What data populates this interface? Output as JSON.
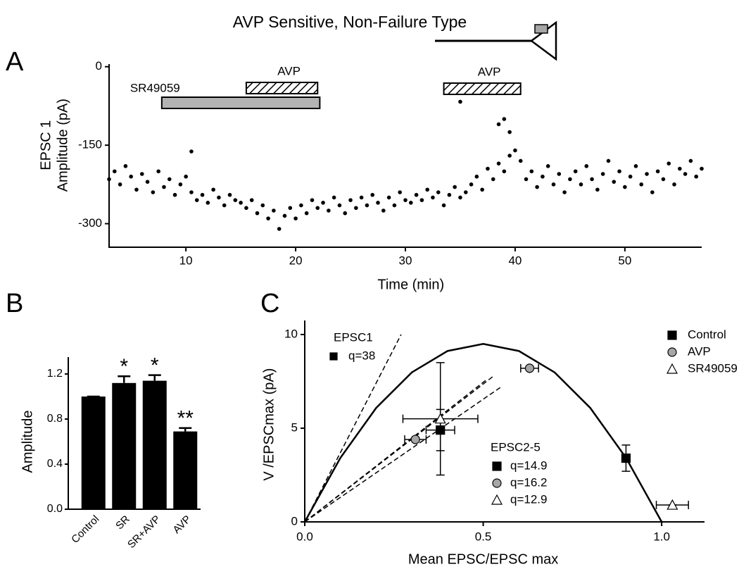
{
  "chart_data": [
    {
      "type": "scatter",
      "panel_label": "A",
      "title": "AVP Sensitive, Non-Failure Type",
      "ylabel_lines": [
        "EPSC 1",
        "Amplitude (pA)"
      ],
      "xlabel": "Time (min)",
      "xlim": [
        3,
        57
      ],
      "ylim": [
        -345,
        5
      ],
      "xticks": [
        10,
        20,
        30,
        40,
        50
      ],
      "yticks": [
        -300,
        -150,
        0
      ],
      "color": "#000000",
      "x": [
        3,
        3.5,
        4,
        4.5,
        5,
        5.5,
        6,
        6.5,
        7,
        7.5,
        8,
        8.5,
        9,
        9.5,
        10,
        10.5,
        11,
        11.5,
        12,
        12.5,
        13,
        13.5,
        14,
        14.5,
        15,
        15.5,
        16,
        16.5,
        17,
        17.5,
        18,
        18.5,
        19,
        19.5,
        20,
        20.5,
        21,
        21.5,
        22,
        22.5,
        23,
        23.5,
        24,
        24.5,
        25,
        25.5,
        26,
        26.5,
        27,
        27.5,
        28,
        28.5,
        29,
        29.5,
        30,
        30.5,
        31,
        31.5,
        32,
        32.5,
        33,
        33.5,
        34,
        34.5,
        35,
        35.5,
        36,
        36.5,
        37,
        37.5,
        38,
        38.5,
        39,
        39.5,
        40,
        40.5,
        41,
        41.5,
        42,
        42.5,
        43,
        43.5,
        44,
        44.5,
        45,
        45.5,
        46,
        46.5,
        47,
        47.5,
        48,
        48.5,
        49,
        49.5,
        50,
        50.5,
        51,
        51.5,
        52,
        52.5,
        53,
        53.5,
        54,
        54.5,
        55,
        55.5,
        56,
        56.5,
        57,
        10.5,
        35,
        39,
        38.5,
        39.5
      ],
      "values": [
        -215,
        -200,
        -225,
        -190,
        -210,
        -235,
        -205,
        -220,
        -240,
        -200,
        -230,
        -215,
        -245,
        -225,
        -210,
        -240,
        -255,
        -245,
        -260,
        -235,
        -250,
        -265,
        -245,
        -255,
        -260,
        -270,
        -255,
        -280,
        -265,
        -290,
        -275,
        -310,
        -285,
        -270,
        -290,
        -265,
        -280,
        -255,
        -270,
        -260,
        -275,
        -250,
        -265,
        -280,
        -255,
        -270,
        -250,
        -265,
        -245,
        -260,
        -275,
        -250,
        -265,
        -240,
        -255,
        -260,
        -245,
        -255,
        -235,
        -250,
        -240,
        -265,
        -245,
        -230,
        -250,
        -240,
        -225,
        -210,
        -235,
        -195,
        -215,
        -185,
        -200,
        -170,
        -160,
        -180,
        -215,
        -200,
        -230,
        -210,
        -190,
        -225,
        -205,
        -240,
        -215,
        -200,
        -225,
        -190,
        -215,
        -235,
        -205,
        -180,
        -220,
        -200,
        -230,
        -210,
        -190,
        -225,
        -205,
        -240,
        -200,
        -215,
        -185,
        -225,
        -195,
        -205,
        -180,
        -210,
        -195,
        -162,
        -67,
        -100,
        -110,
        -125
      ],
      "bars": [
        {
          "label": "SR49059",
          "start": 7.8,
          "end": 22.2,
          "style": "solid",
          "color": "#b3b3b3"
        },
        {
          "label": "AVP",
          "start": 15.5,
          "end": 22.0,
          "style": "hatched",
          "color": "#000000"
        },
        {
          "label": "AVP",
          "start": 33.5,
          "end": 40.5,
          "style": "hatched",
          "color": "#000000"
        }
      ]
    },
    {
      "type": "bar",
      "panel_label": "B",
      "ylabel": "Amplitude",
      "categories": [
        "Control",
        "SR",
        "SR+AVP",
        "AVP"
      ],
      "values": [
        1.0,
        1.12,
        1.14,
        0.69
      ],
      "errors": [
        0,
        0.06,
        0.05,
        0.03
      ],
      "significance": [
        null,
        "*",
        "*",
        "**"
      ],
      "ylim": [
        0,
        1.35
      ],
      "yticks": [
        {
          "value": 0,
          "label": "0.0"
        },
        0.4,
        0.8,
        1.2
      ],
      "color": "#000000"
    },
    {
      "type": "scatter-errorbar",
      "panel_label": "C",
      "xlabel": "Mean EPSC/EPSC max",
      "ylabel": "V /EPSCmax (pA)",
      "xlim": [
        0,
        1.12
      ],
      "ylim": [
        0,
        10.75
      ],
      "xticks": [
        {
          "value": 0,
          "label": "0.0"
        },
        0.5,
        {
          "value": 1,
          "label": "1.0"
        }
      ],
      "yticks": [
        0,
        5,
        10
      ],
      "series": [
        {
          "name": "Control",
          "marker": "square",
          "color": "#000000",
          "x": [
            0.38,
            0.9
          ],
          "values": [
            4.9,
            3.4
          ],
          "xerr": [
            0.04,
            0
          ],
          "yerr": [
            1.1,
            0.7
          ]
        },
        {
          "name": "AVP",
          "marker": "circle",
          "color": "#a6a6a6",
          "x": [
            0.31,
            0.63
          ],
          "values": [
            4.4,
            8.2
          ],
          "xerr": [
            0.03,
            0.025
          ],
          "yerr": [
            0,
            0
          ]
        },
        {
          "name": "SR49059",
          "marker": "triangle",
          "color": "#ffffff",
          "x": [
            0.38,
            1.03
          ],
          "values": [
            5.5,
            0.9
          ],
          "xerr": [
            0.105,
            0.045
          ],
          "yerr": [
            3.0,
            0
          ]
        }
      ],
      "curve": {
        "x": [
          0,
          0.1,
          0.2,
          0.3,
          0.4,
          0.5,
          0.6,
          0.7,
          0.8,
          0.9,
          1.0
        ],
        "values": [
          0,
          3.42,
          6.08,
          7.98,
          9.12,
          9.5,
          9.12,
          7.98,
          6.08,
          3.42,
          0
        ]
      },
      "dashed_lines": [
        {
          "x": [
            0,
            0.27
          ],
          "values": [
            0,
            10
          ]
        },
        {
          "x": [
            0,
            0.55
          ],
          "values": [
            0,
            7.2
          ]
        },
        {
          "x": [
            0,
            0.53
          ],
          "values": [
            0,
            7.8
          ]
        },
        {
          "x": [
            0,
            0.51
          ],
          "values": [
            0,
            7.6
          ]
        }
      ],
      "annotations": {
        "epsc1_title": "EPSC1",
        "epsc1_q": "q=38",
        "epsc25_title": "EPSC2-5",
        "epsc25_q": [
          "q=14.9",
          "q=16.2",
          "q=12.9"
        ]
      }
    }
  ]
}
